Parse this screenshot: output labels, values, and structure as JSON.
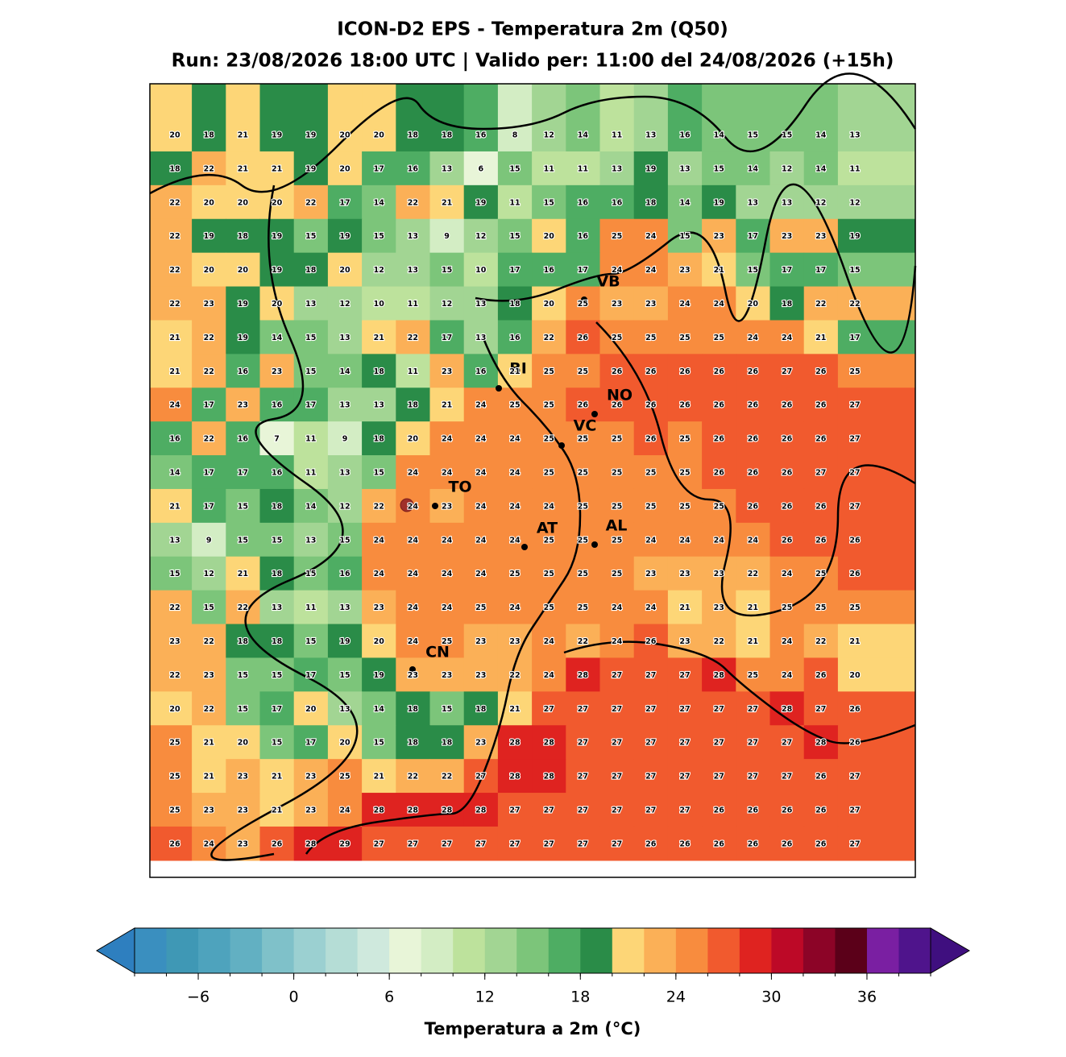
{
  "title": "ICON-D2 EPS - Temperatura 2m (Q50)",
  "subtitle": "Run: 23/08/2026 18:00 UTC | Valido per: 11:00 del 24/08/2026 (+15h)",
  "map": {
    "grid": [
      [
        20,
        18,
        21,
        19,
        19,
        20,
        20,
        18,
        18,
        16,
        8,
        12,
        14,
        11,
        13,
        16,
        14,
        15,
        15,
        14,
        13
      ],
      [
        18,
        22,
        21,
        21,
        19,
        20,
        17,
        16,
        13,
        6,
        15,
        11,
        11,
        13,
        19,
        13,
        15,
        14,
        12,
        14,
        11
      ],
      [
        22,
        20,
        20,
        20,
        22,
        17,
        14,
        22,
        21,
        19,
        11,
        15,
        16,
        16,
        18,
        14,
        19,
        13,
        13,
        12,
        12
      ],
      [
        22,
        19,
        18,
        19,
        15,
        19,
        15,
        13,
        9,
        12,
        15,
        20,
        16,
        25,
        24,
        15,
        23,
        17,
        23,
        23,
        19
      ],
      [
        22,
        20,
        20,
        19,
        18,
        20,
        12,
        13,
        15,
        10,
        17,
        16,
        17,
        24,
        24,
        23,
        21,
        15,
        17,
        17,
        15
      ],
      [
        22,
        23,
        19,
        20,
        13,
        12,
        10,
        11,
        12,
        13,
        18,
        20,
        25,
        23,
        23,
        24,
        24,
        20,
        18,
        22,
        22
      ],
      [
        21,
        22,
        19,
        14,
        15,
        13,
        21,
        22,
        17,
        13,
        16,
        22,
        26,
        25,
        25,
        25,
        25,
        24,
        24,
        21,
        17
      ],
      [
        21,
        22,
        16,
        23,
        15,
        14,
        18,
        11,
        23,
        16,
        21,
        25,
        25,
        26,
        26,
        26,
        26,
        26,
        27,
        26,
        25
      ],
      [
        24,
        17,
        23,
        16,
        17,
        13,
        13,
        18,
        21,
        24,
        25,
        25,
        26,
        26,
        26,
        26,
        26,
        26,
        26,
        26,
        27
      ],
      [
        16,
        22,
        16,
        7,
        11,
        9,
        18,
        20,
        24,
        24,
        24,
        25,
        25,
        25,
        26,
        25,
        26,
        26,
        26,
        26,
        27
      ],
      [
        14,
        17,
        17,
        16,
        11,
        13,
        15,
        24,
        24,
        24,
        24,
        25,
        25,
        25,
        25,
        25,
        26,
        26,
        26,
        27,
        27
      ],
      [
        21,
        17,
        15,
        18,
        14,
        12,
        22,
        24,
        23,
        24,
        24,
        24,
        25,
        25,
        25,
        25,
        25,
        26,
        26,
        26,
        27
      ],
      [
        13,
        9,
        15,
        15,
        13,
        15,
        24,
        24,
        24,
        24,
        24,
        25,
        25,
        25,
        24,
        24,
        24,
        24,
        26,
        26,
        26
      ],
      [
        15,
        12,
        21,
        18,
        15,
        16,
        24,
        24,
        24,
        24,
        25,
        25,
        25,
        25,
        23,
        23,
        23,
        22,
        24,
        25,
        26
      ],
      [
        22,
        15,
        22,
        13,
        11,
        13,
        23,
        24,
        24,
        25,
        24,
        25,
        25,
        24,
        24,
        21,
        23,
        21,
        25,
        25,
        25
      ],
      [
        23,
        22,
        18,
        18,
        15,
        19,
        20,
        24,
        25,
        23,
        23,
        24,
        22,
        24,
        26,
        23,
        22,
        21,
        24,
        22,
        21
      ],
      [
        22,
        23,
        15,
        15,
        17,
        15,
        19,
        23,
        23,
        23,
        22,
        24,
        28,
        27,
        27,
        27,
        28,
        25,
        24,
        26,
        20
      ],
      [
        20,
        22,
        15,
        17,
        20,
        13,
        14,
        18,
        15,
        18,
        21,
        27,
        27,
        27,
        27,
        27,
        27,
        27,
        28,
        27,
        26
      ],
      [
        25,
        21,
        20,
        15,
        17,
        20,
        15,
        18,
        18,
        23,
        28,
        28,
        27,
        27,
        27,
        27,
        27,
        27,
        27,
        28,
        26
      ],
      [
        25,
        21,
        23,
        21,
        23,
        25,
        21,
        22,
        22,
        27,
        28,
        28,
        27,
        27,
        27,
        27,
        27,
        27,
        27,
        26,
        27
      ],
      [
        25,
        23,
        23,
        21,
        23,
        24,
        28,
        28,
        28,
        28,
        27,
        27,
        27,
        27,
        27,
        27,
        26,
        26,
        26,
        26,
        27
      ],
      [
        26,
        24,
        23,
        26,
        28,
        29,
        27,
        27,
        27,
        27,
        27,
        27,
        27,
        27,
        26,
        26,
        26,
        26,
        26,
        26,
        27
      ]
    ]
  },
  "cities": [
    "VB",
    "BI",
    "NO",
    "VC",
    "TO",
    "AT",
    "AL",
    "CN"
  ],
  "colorbar": {
    "label": "Temperatura a 2m (°C)",
    "vmin": -10,
    "vmax": 40,
    "step": 2,
    "colors": [
      "#3a8fbf",
      "#3f98b5",
      "#4ea3bd",
      "#62b0c2",
      "#7fc1c9",
      "#9bd0d1",
      "#b5ddd6",
      "#cfe9dd",
      "#e8f5d8",
      "#d3edc4",
      "#bde29c",
      "#a2d593",
      "#7cc57a",
      "#4ead63",
      "#2a8c48",
      "#fdd677",
      "#fbb057",
      "#f88c3e",
      "#f15a2e",
      "#df2320",
      "#bd0927",
      "#8c0427",
      "#5b0019",
      "#7a1fa2",
      "#4f148c"
    ],
    "under": "#2e7fbf",
    "over": "#3f0f7f",
    "ticks": [
      {
        "value": -6,
        "label": "−6"
      },
      0,
      6,
      12,
      18,
      24,
      30,
      36
    ]
  }
}
